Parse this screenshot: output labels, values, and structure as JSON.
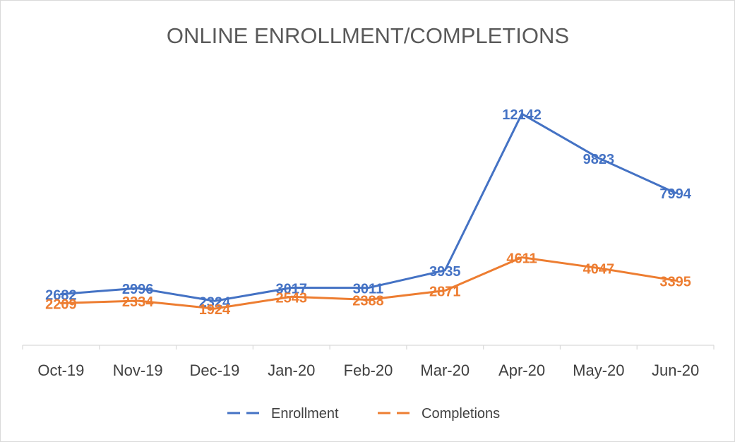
{
  "chart_data": {
    "type": "line",
    "title": "ONLINE ENROLLMENT/COMPLETIONS",
    "categories": [
      "Oct-19",
      "Nov-19",
      "Dec-19",
      "Jan-20",
      "Feb-20",
      "Mar-20",
      "Apr-20",
      "May-20",
      "Jun-20"
    ],
    "series": [
      {
        "name": "Enrollment",
        "color": "#4472C4",
        "values": [
          2682,
          2996,
          2324,
          3017,
          3011,
          3935,
          12142,
          9823,
          7994
        ]
      },
      {
        "name": "Completions",
        "color": "#ED7D31",
        "values": [
          2209,
          2334,
          1924,
          2543,
          2388,
          2871,
          4611,
          4047,
          3395
        ]
      }
    ],
    "data_labels": true,
    "ylim": [
      0,
      14000
    ],
    "y_axis_visible": false,
    "grid": false,
    "legend": "bottom"
  }
}
